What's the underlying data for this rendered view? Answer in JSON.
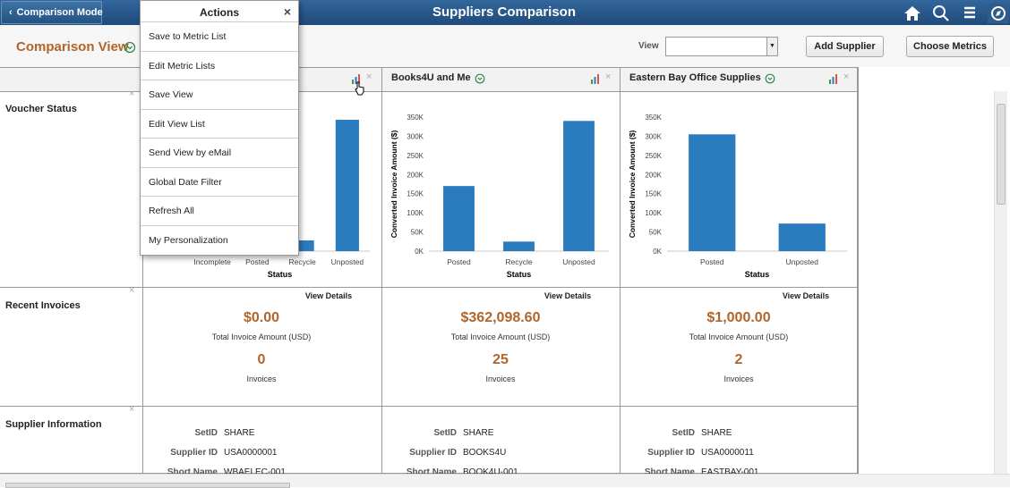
{
  "header": {
    "back_button": "Comparison Mode",
    "title": "Suppliers Comparison"
  },
  "toolbar": {
    "title": "Comparison View",
    "view_label": "View",
    "buttons": [
      "Add Supplier",
      "Choose Metrics"
    ]
  },
  "actions_menu": {
    "title": "Actions",
    "items": [
      "Save to Metric List",
      "Edit Metric Lists",
      "Save View",
      "Edit View List",
      "Send View by eMail",
      "Global Date Filter",
      "Refresh All",
      "My Personalization"
    ]
  },
  "rows": [
    "Voucher Status",
    "Recent Invoices",
    "Supplier Information"
  ],
  "field_labels": [
    "SetID",
    "Supplier ID",
    "Short Name"
  ],
  "suppliers": [
    {
      "chart": {
        "type": "bar",
        "x_label": "Status",
        "categories": [
          "Incomplete",
          "Posted",
          "Recycle",
          "Unposted"
        ],
        "values": [
          null,
          null,
          28000,
          343000
        ],
        "color": "#2b7bbf",
        "ylim": [
          0,
          350000
        ]
      },
      "invoices": {
        "link": "View Details",
        "amount": "$0.00",
        "amount_label": "Total Invoice Amount (USD)",
        "count": 0,
        "count_label": "Invoices"
      },
      "info": [
        "SHARE",
        "USA0000001",
        "WBAELEC-001"
      ]
    },
    {
      "name": "Books4U and Me",
      "chart": {
        "type": "bar",
        "x_label": "Status",
        "y_label": "Converted Invoice Amount ($)",
        "categories": [
          "Posted",
          "Recycle",
          "Unposted"
        ],
        "values": [
          170000,
          25000,
          340000
        ],
        "color": "#2b7bbf",
        "ylim": [
          0,
          350000
        ],
        "yticks": [
          {
            "value": 0,
            "label": "0K"
          },
          {
            "value": 50000,
            "label": "50K"
          },
          {
            "value": 100000,
            "label": "100K"
          },
          {
            "value": 150000,
            "label": "150K"
          },
          {
            "value": 200000,
            "label": "200K"
          },
          {
            "value": 250000,
            "label": "250K"
          },
          {
            "value": 300000,
            "label": "300K"
          },
          {
            "value": 350000,
            "label": "350K"
          }
        ]
      },
      "invoices": {
        "link": "View Details",
        "amount": "$362,098.60",
        "amount_label": "Total Invoice Amount (USD)",
        "count": 25,
        "count_label": "Invoices"
      },
      "info": [
        "SHARE",
        "BOOKS4U",
        "BOOK4U-001"
      ]
    },
    {
      "name": "Eastern Bay Office Supplies",
      "chart": {
        "type": "bar",
        "x_label": "Status",
        "y_label": "Converted Invoice Amount ($)",
        "categories": [
          "Posted",
          "Unposted"
        ],
        "values": [
          305000,
          72000
        ],
        "color": "#2b7bbf",
        "ylim": [
          0,
          350000
        ],
        "yticks": [
          {
            "value": 0,
            "label": "0K"
          },
          {
            "value": 50000,
            "label": "50K"
          },
          {
            "value": 100000,
            "label": "100K"
          },
          {
            "value": 150000,
            "label": "150K"
          },
          {
            "value": 200000,
            "label": "200K"
          },
          {
            "value": 250000,
            "label": "250K"
          },
          {
            "value": 300000,
            "label": "300K"
          },
          {
            "value": 350000,
            "label": "350K"
          }
        ]
      },
      "invoices": {
        "link": "View Details",
        "amount": "$1,000.00",
        "amount_label": "Total Invoice Amount (USD)",
        "count": 2,
        "count_label": "Invoices"
      },
      "info": [
        "SHARE",
        "USA0000011",
        "EASTBAY-001"
      ]
    }
  ]
}
